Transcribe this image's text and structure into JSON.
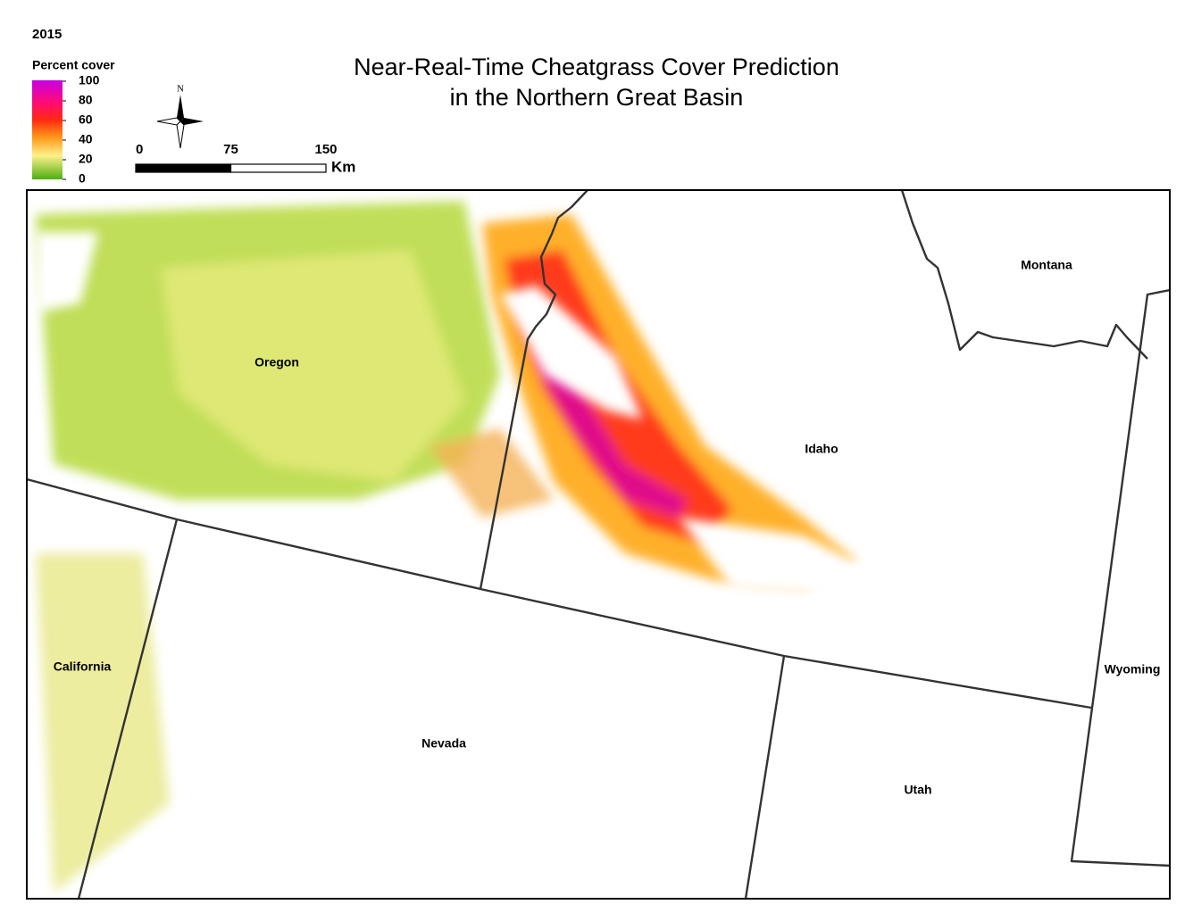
{
  "year": "2015",
  "title": [
    "Near-Real-Time Cheatgrass Cover Prediction",
    "in the Northern Great Basin"
  ],
  "legend": {
    "title": "Percent cover",
    "ticks": [
      100,
      80,
      60,
      40,
      20,
      0
    ]
  },
  "north_arrow": "N",
  "scale_bar": {
    "ticks": [
      0,
      75,
      150
    ],
    "unit": "Km"
  },
  "states": [
    {
      "label": "Oregon"
    },
    {
      "label": "Idaho"
    },
    {
      "label": "Montana"
    },
    {
      "label": "California"
    },
    {
      "label": "Nevada"
    },
    {
      "label": "Utah"
    },
    {
      "label": "Wyoming"
    }
  ]
}
